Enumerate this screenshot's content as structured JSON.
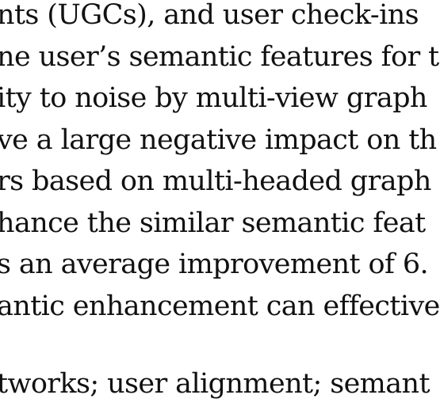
{
  "paper": {
    "abstract_lines": [
      "nts (UGCs), and user check-ins",
      "ne user’s semantic features for t",
      "ity to noise by multi-view graph",
      "ve a large negative impact on th",
      "rs based on multi-headed graph",
      "hance the similar semantic feat",
      "s an average improvement of 6.",
      "antic enhancement can effective"
    ],
    "keywords_line": "tworks; user alignment; semant"
  }
}
